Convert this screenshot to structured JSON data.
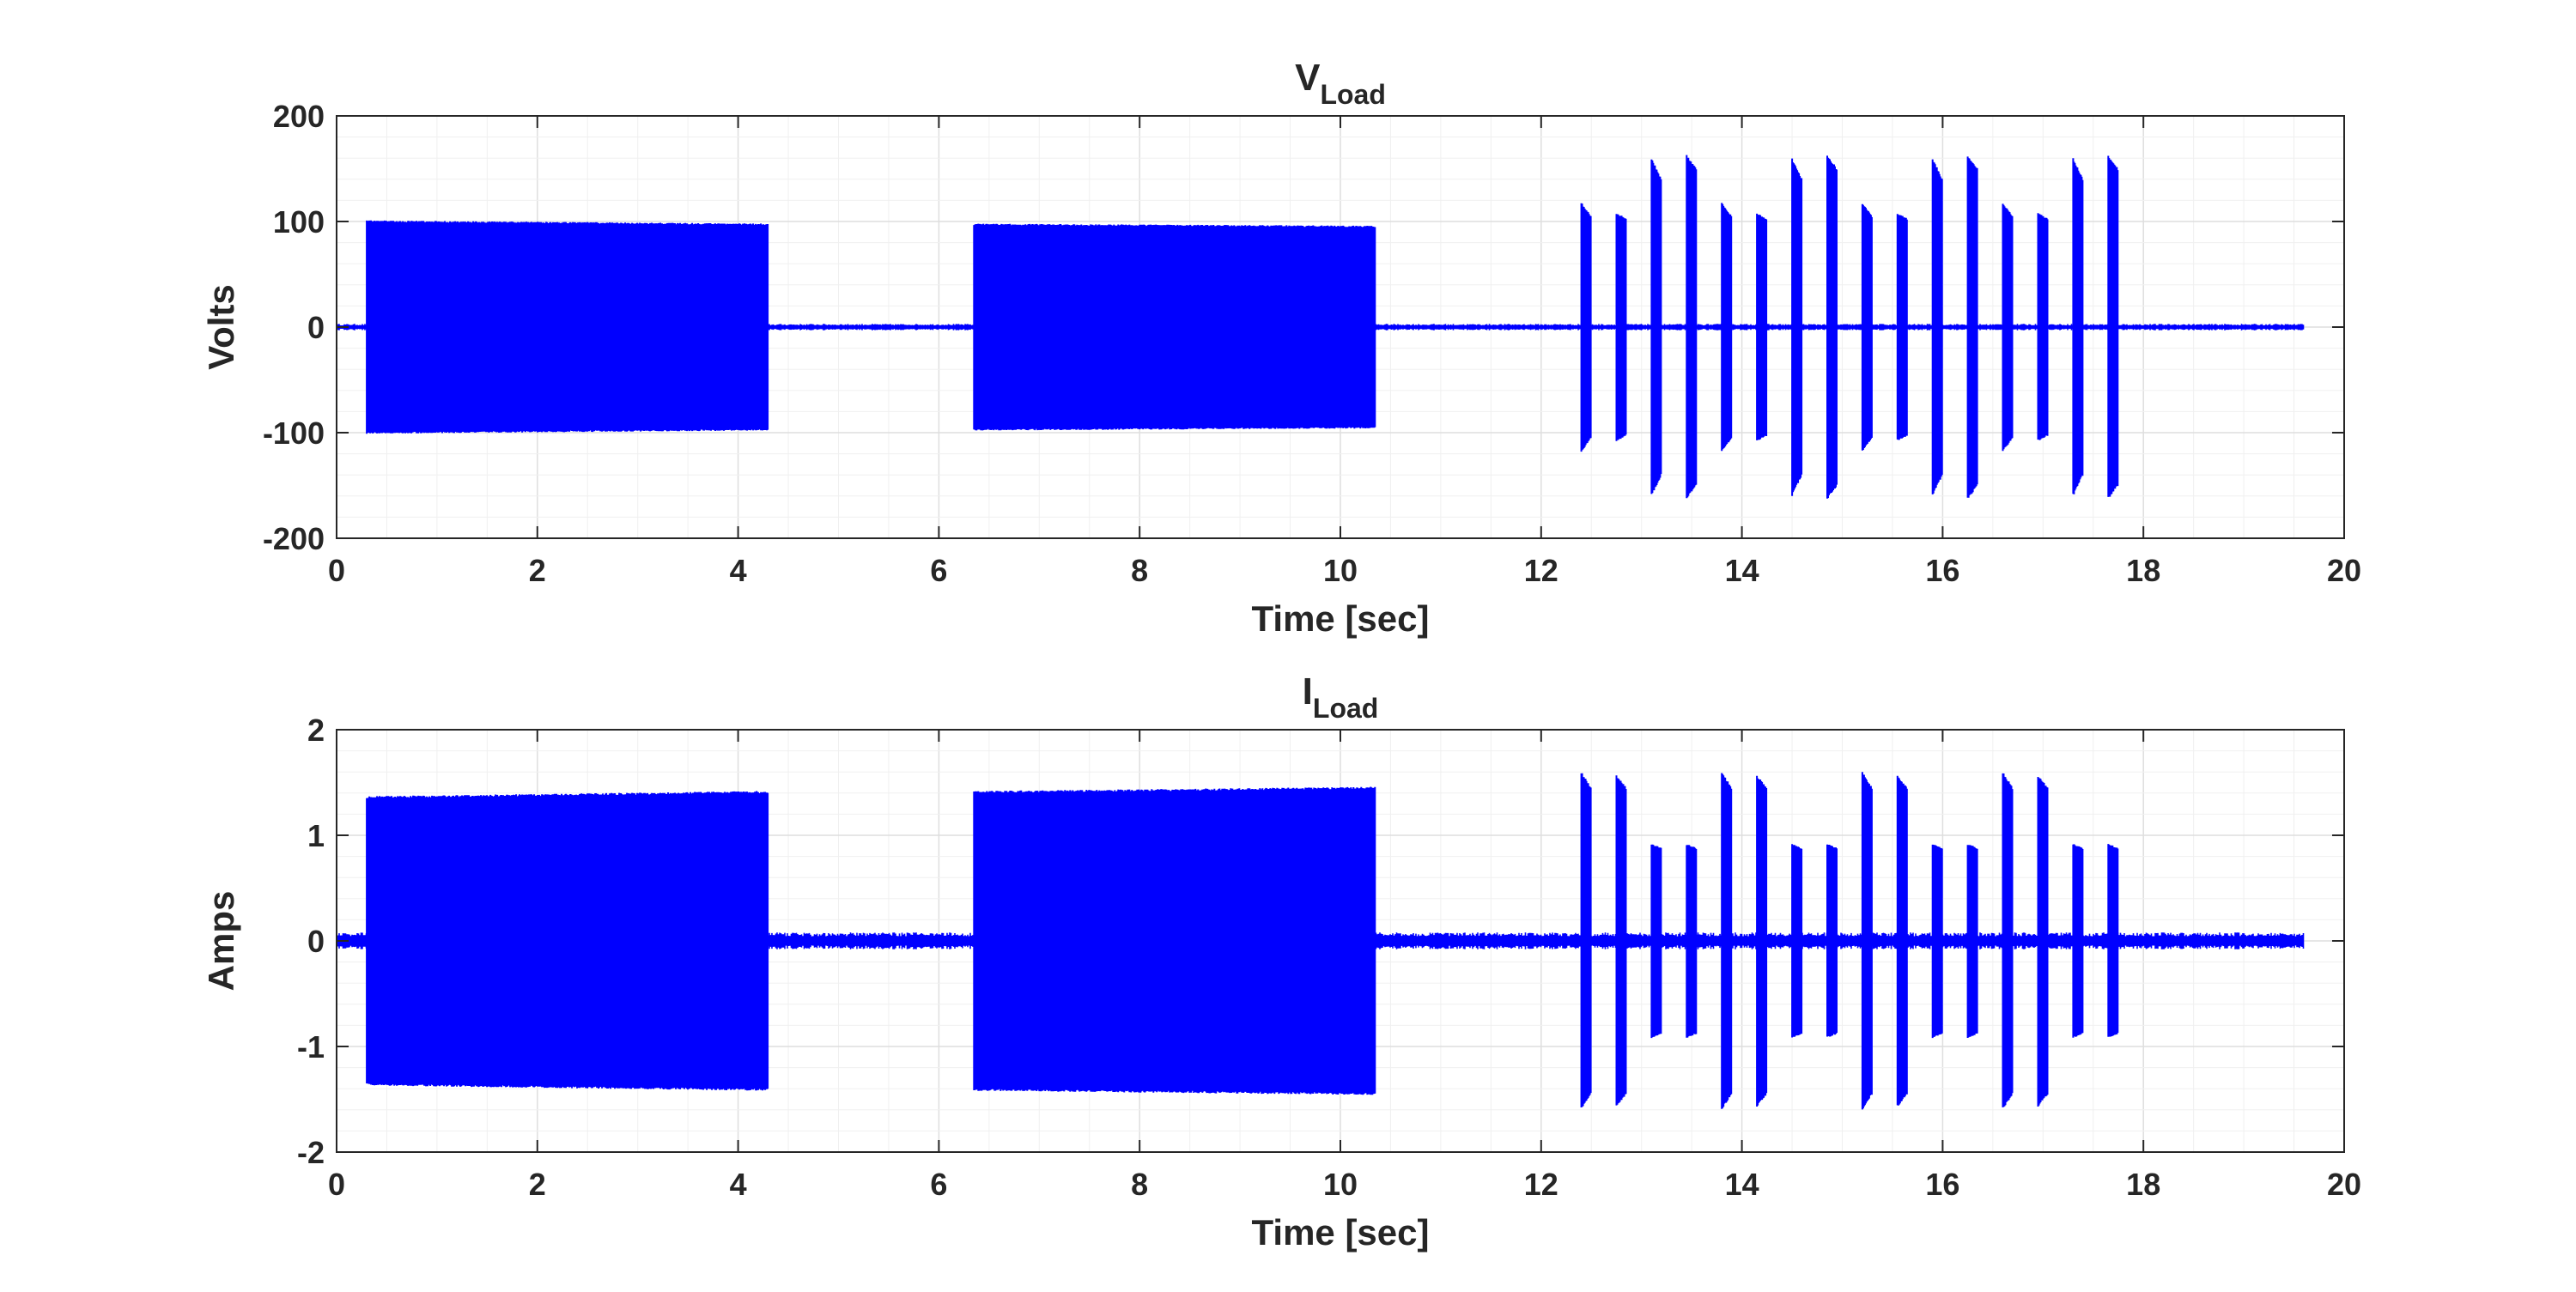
{
  "chart_data": [
    {
      "type": "line",
      "title": "V",
      "title_subscript": "Load",
      "xlabel": "Time [sec]",
      "ylabel": "Volts",
      "xlim": [
        0,
        20
      ],
      "ylim": [
        -200,
        200
      ],
      "xticks": [
        0,
        2,
        4,
        6,
        8,
        10,
        12,
        14,
        16,
        18,
        20
      ],
      "xtick_labels": [
        "0",
        "2",
        "4",
        "6",
        "8",
        "10",
        "12",
        "14",
        "16",
        "18",
        "20"
      ],
      "yticks": [
        200,
        100,
        0,
        -100,
        -200
      ],
      "ytick_labels": [
        "200",
        "100",
        "0",
        "-100",
        "-200"
      ],
      "grid": true,
      "series_color": "#0000FF",
      "signal_end": 19.6,
      "baseline_noise": 3,
      "segments": [
        {
          "start": 0.3,
          "end": 4.3,
          "amp_start": 101,
          "amp_end": 98
        },
        {
          "start": 6.35,
          "end": 10.35,
          "amp_start": 98,
          "amp_end": 96
        },
        {
          "start": 12.4,
          "end": 12.5,
          "amp_start": 118,
          "amp_end": 105
        },
        {
          "start": 12.75,
          "end": 12.85,
          "amp_start": 108,
          "amp_end": 103
        },
        {
          "start": 13.1,
          "end": 13.2,
          "amp_start": 160,
          "amp_end": 140
        },
        {
          "start": 13.45,
          "end": 13.55,
          "amp_start": 163,
          "amp_end": 150
        },
        {
          "start": 13.8,
          "end": 13.9,
          "amp_start": 118,
          "amp_end": 105
        },
        {
          "start": 14.15,
          "end": 14.25,
          "amp_start": 108,
          "amp_end": 103
        },
        {
          "start": 14.5,
          "end": 14.6,
          "amp_start": 160,
          "amp_end": 140
        },
        {
          "start": 14.85,
          "end": 14.95,
          "amp_start": 163,
          "amp_end": 150
        },
        {
          "start": 15.2,
          "end": 15.3,
          "amp_start": 118,
          "amp_end": 105
        },
        {
          "start": 15.55,
          "end": 15.65,
          "amp_start": 108,
          "amp_end": 103
        },
        {
          "start": 15.9,
          "end": 16.0,
          "amp_start": 160,
          "amp_end": 140
        },
        {
          "start": 16.25,
          "end": 16.35,
          "amp_start": 163,
          "amp_end": 150
        },
        {
          "start": 16.6,
          "end": 16.7,
          "amp_start": 118,
          "amp_end": 105
        },
        {
          "start": 16.95,
          "end": 17.05,
          "amp_start": 108,
          "amp_end": 103
        },
        {
          "start": 17.3,
          "end": 17.4,
          "amp_start": 160,
          "amp_end": 140
        },
        {
          "start": 17.65,
          "end": 17.75,
          "amp_start": 163,
          "amp_end": 150
        }
      ]
    },
    {
      "type": "line",
      "title": "I",
      "title_subscript": "Load",
      "xlabel": "Time [sec]",
      "ylabel": "Amps",
      "xlim": [
        0,
        20
      ],
      "ylim": [
        -2,
        2
      ],
      "xticks": [
        0,
        2,
        4,
        6,
        8,
        10,
        12,
        14,
        16,
        18,
        20
      ],
      "xtick_labels": [
        "0",
        "2",
        "4",
        "6",
        "8",
        "10",
        "12",
        "14",
        "16",
        "18",
        "20"
      ],
      "yticks": [
        2,
        1,
        0,
        -1,
        -2
      ],
      "ytick_labels": [
        "2",
        "1",
        "0",
        "-1",
        "-2"
      ],
      "grid": true,
      "series_color": "#0000FF",
      "signal_end": 19.6,
      "baseline_noise": 0.08,
      "segments": [
        {
          "start": 0.3,
          "end": 4.3,
          "amp_start": 1.37,
          "amp_end": 1.42
        },
        {
          "start": 6.35,
          "end": 10.35,
          "amp_start": 1.42,
          "amp_end": 1.46
        },
        {
          "start": 12.4,
          "end": 12.5,
          "amp_start": 1.6,
          "amp_end": 1.45
        },
        {
          "start": 12.75,
          "end": 12.85,
          "amp_start": 1.57,
          "amp_end": 1.45
        },
        {
          "start": 13.1,
          "end": 13.2,
          "amp_start": 0.92,
          "amp_end": 0.88
        },
        {
          "start": 13.45,
          "end": 13.55,
          "amp_start": 0.92,
          "amp_end": 0.88
        },
        {
          "start": 13.8,
          "end": 13.9,
          "amp_start": 1.6,
          "amp_end": 1.45
        },
        {
          "start": 14.15,
          "end": 14.25,
          "amp_start": 1.57,
          "amp_end": 1.45
        },
        {
          "start": 14.5,
          "end": 14.6,
          "amp_start": 0.92,
          "amp_end": 0.88
        },
        {
          "start": 14.85,
          "end": 14.95,
          "amp_start": 0.92,
          "amp_end": 0.88
        },
        {
          "start": 15.2,
          "end": 15.3,
          "amp_start": 1.6,
          "amp_end": 1.45
        },
        {
          "start": 15.55,
          "end": 15.65,
          "amp_start": 1.57,
          "amp_end": 1.45
        },
        {
          "start": 15.9,
          "end": 16.0,
          "amp_start": 0.92,
          "amp_end": 0.88
        },
        {
          "start": 16.25,
          "end": 16.35,
          "amp_start": 0.92,
          "amp_end": 0.88
        },
        {
          "start": 16.6,
          "end": 16.7,
          "amp_start": 1.6,
          "amp_end": 1.45
        },
        {
          "start": 16.95,
          "end": 17.05,
          "amp_start": 1.57,
          "amp_end": 1.45
        },
        {
          "start": 17.3,
          "end": 17.4,
          "amp_start": 0.92,
          "amp_end": 0.88
        },
        {
          "start": 17.65,
          "end": 17.75,
          "amp_start": 0.92,
          "amp_end": 0.88
        }
      ]
    }
  ]
}
